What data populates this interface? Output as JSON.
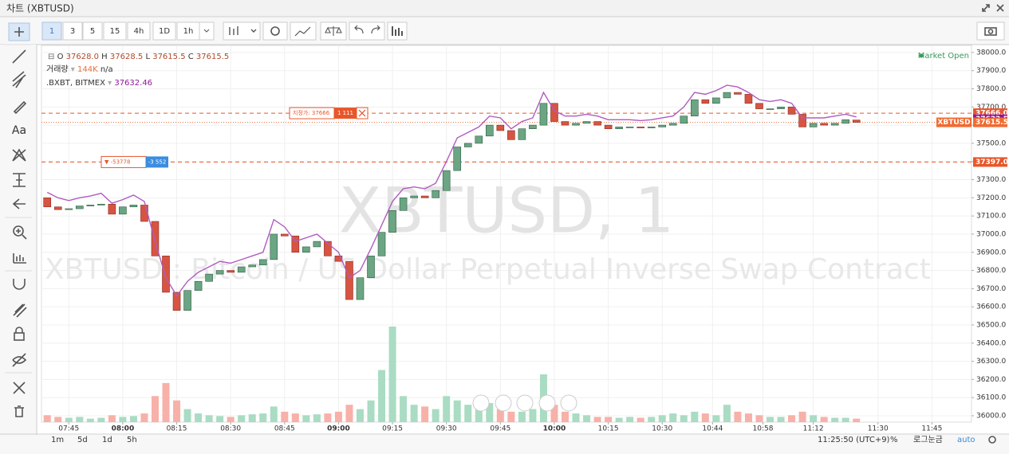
{
  "window": {
    "title": "차트 (XBTUSD)"
  },
  "toolbar": {
    "intervals": [
      "1",
      "3",
      "5",
      "15",
      "4h",
      "1D",
      "1h"
    ]
  },
  "left_tools": {
    "text_tool": "Aa"
  },
  "legend": {
    "ohlc": [
      {
        "key": "O",
        "value": "37628.0"
      },
      {
        "key": "H",
        "value": "37628.5"
      },
      {
        "key": "L",
        "value": "37615.5"
      },
      {
        "key": "C",
        "value": "37615.5"
      }
    ],
    "volume_label": "거래량",
    "volume_value": "144K",
    "volume_extra": "n/a",
    "index_name": ".BXBT, BITMEX",
    "index_value": "37632.46"
  },
  "status": "Market Open",
  "chart_data": {
    "type": "candlestick",
    "watermark": "XBTUSD, 1",
    "subtitle": "XBTUSD : Bitcoin / US Dollar Perpetual Inverse Swap Contract",
    "up_color": "#6ba583",
    "down_color": "#d75442",
    "volume_up_color": "#a9dcc3",
    "volume_down_color": "#f7b1a8",
    "grid": true,
    "x": [
      459,
      462,
      465,
      468,
      471,
      474,
      477,
      480,
      483,
      486,
      489,
      492,
      495,
      498,
      501,
      504,
      507,
      510,
      513,
      516,
      519,
      522,
      525,
      528,
      531,
      534,
      537,
      540,
      543,
      546,
      549,
      552,
      555,
      558,
      561,
      564,
      567,
      570,
      573,
      576,
      579,
      582,
      585,
      588,
      591,
      594,
      597,
      600,
      603,
      606,
      609,
      612,
      615,
      618,
      621,
      624,
      627,
      630,
      633,
      636,
      639,
      642,
      645,
      648,
      651,
      654,
      657,
      660,
      663,
      666,
      669,
      672,
      675,
      678,
      681,
      684
    ],
    "open": [
      37200,
      37150,
      37135,
      37140,
      37155,
      37160,
      37165,
      37110,
      37150,
      37160,
      37070,
      36880,
      36680,
      36580,
      36690,
      36740,
      36780,
      36800,
      36790,
      36820,
      36830,
      36860,
      37000,
      36990,
      36900,
      36930,
      36960,
      36880,
      36850,
      36640,
      36760,
      36880,
      37010,
      37130,
      37200,
      37210,
      37200,
      37240,
      37350,
      37480,
      37500,
      37540,
      37600,
      37570,
      37520,
      37580,
      37600,
      37720,
      37620,
      37600,
      37610,
      37620,
      37600,
      37580,
      37590,
      37590,
      37585,
      37590,
      37600,
      37610,
      37650,
      37740,
      37720,
      37750,
      37780,
      37770,
      37720,
      37690,
      37690,
      37700,
      37660,
      37590,
      37610,
      37600,
      37610,
      37628
    ],
    "close": [
      37150,
      37135,
      37140,
      37155,
      37160,
      37165,
      37110,
      37150,
      37160,
      37070,
      36880,
      36680,
      36580,
      36690,
      36740,
      36780,
      36800,
      36790,
      36820,
      36830,
      36860,
      37000,
      36990,
      36900,
      36930,
      36960,
      36880,
      36850,
      36640,
      36760,
      36880,
      37010,
      37130,
      37200,
      37210,
      37200,
      37240,
      37350,
      37480,
      37500,
      37540,
      37600,
      37570,
      37520,
      37580,
      37600,
      37720,
      37620,
      37600,
      37610,
      37620,
      37600,
      37580,
      37590,
      37590,
      37585,
      37590,
      37600,
      37610,
      37650,
      37740,
      37720,
      37750,
      37780,
      37770,
      37720,
      37690,
      37690,
      37700,
      37660,
      37590,
      37610,
      37600,
      37610,
      37630,
      37615.5
    ],
    "volume": [
      8,
      6,
      5,
      6,
      4,
      5,
      8,
      6,
      7,
      10,
      30,
      45,
      25,
      15,
      10,
      8,
      7,
      6,
      8,
      9,
      10,
      18,
      12,
      10,
      8,
      9,
      10,
      12,
      20,
      15,
      25,
      60,
      110,
      30,
      20,
      18,
      15,
      30,
      25,
      20,
      18,
      22,
      15,
      12,
      12,
      15,
      55,
      20,
      12,
      10,
      8,
      6,
      6,
      5,
      6,
      5,
      6,
      8,
      10,
      8,
      12,
      10,
      8,
      20,
      12,
      10,
      8,
      6,
      6,
      8,
      12,
      8,
      6,
      5,
      5,
      4
    ],
    "indicator": {
      "color": "#b05cc0",
      "values": [
        37230,
        37200,
        37185,
        37200,
        37210,
        37225,
        37170,
        37190,
        37215,
        37180,
        36960,
        36760,
        36660,
        36740,
        36790,
        36820,
        36850,
        36840,
        36860,
        36880,
        36900,
        37080,
        37040,
        36960,
        36980,
        37000,
        36950,
        36900,
        36760,
        36800,
        36920,
        37050,
        37180,
        37250,
        37260,
        37250,
        37280,
        37400,
        37530,
        37560,
        37590,
        37650,
        37640,
        37580,
        37620,
        37640,
        37780,
        37680,
        37650,
        37650,
        37660,
        37650,
        37630,
        37630,
        37630,
        37625,
        37630,
        37640,
        37650,
        37700,
        37780,
        37770,
        37790,
        37820,
        37810,
        37780,
        37740,
        37730,
        37740,
        37720,
        37640,
        37640,
        37640,
        37650,
        37660,
        37645
      ]
    },
    "price_lines": [
      {
        "value": 37666,
        "label": "37666.0",
        "color": "#e8562a",
        "style": "dashed",
        "order": {
          "label": "지정가: 37666",
          "qty": "1 111"
        }
      },
      {
        "value": 37632.5,
        "label": "37632.5",
        "color": "#8e1599"
      },
      {
        "value": 37615.5,
        "label": "37615.5",
        "name": "XBTUSD",
        "color": "#f06b32",
        "style": "dotted"
      },
      {
        "value": 37397,
        "label": "37397.0",
        "color": "#e8562a",
        "style": "dashed",
        "order": {
          "label": "▼ -53778",
          "qty": "-3 552"
        }
      }
    ],
    "xlim": [
      457.4,
      716
    ],
    "xticks": [
      {
        "value": 465,
        "label": "07:45"
      },
      {
        "value": 480,
        "label": "08:00"
      },
      {
        "value": 495,
        "label": "08:15"
      },
      {
        "value": 510,
        "label": "08:30"
      },
      {
        "value": 525,
        "label": "08:45"
      },
      {
        "value": 540,
        "label": "09:00"
      },
      {
        "value": 555,
        "label": "09:15"
      },
      {
        "value": 570,
        "label": "09:30"
      },
      {
        "value": 585,
        "label": "09:45"
      },
      {
        "value": 600,
        "label": "10:00"
      },
      {
        "value": 615,
        "label": "10:15"
      },
      {
        "value": 630,
        "label": "10:30"
      },
      {
        "value": 644,
        "label": "10:44"
      },
      {
        "value": 658,
        "label": "10:58"
      },
      {
        "value": 672,
        "label": "11:12"
      },
      {
        "value": 690,
        "label": "11:30"
      },
      {
        "value": 705,
        "label": "11:45"
      }
    ],
    "ylim": [
      35965,
      38039
    ],
    "yticks": [
      {
        "value": 36000,
        "label": "36000.0"
      },
      {
        "value": 36100,
        "label": "36100.0"
      },
      {
        "value": 36200,
        "label": "36200.0"
      },
      {
        "value": 36300,
        "label": "36300.0"
      },
      {
        "value": 36400,
        "label": "36400.0"
      },
      {
        "value": 36500,
        "label": "36500.0"
      },
      {
        "value": 36600,
        "label": "36600.0"
      },
      {
        "value": 36700,
        "label": "36700.0"
      },
      {
        "value": 36800,
        "label": "36800.0"
      },
      {
        "value": 36900,
        "label": "36900.0"
      },
      {
        "value": 37000,
        "label": "37000.0"
      },
      {
        "value": 37100,
        "label": "37100.0"
      },
      {
        "value": 37200,
        "label": "37200.0"
      },
      {
        "value": 37300,
        "label": "37300.0"
      },
      {
        "value": 37400,
        "label": "37400.0"
      },
      {
        "value": 37500,
        "label": "37500.0"
      },
      {
        "value": 37600,
        "label": "37600.0"
      },
      {
        "value": 37700,
        "label": "37700.0"
      },
      {
        "value": 37800,
        "label": "37800.0"
      },
      {
        "value": 37900,
        "label": "37900.0"
      },
      {
        "value": 38000,
        "label": "38000.0"
      }
    ]
  },
  "footer": {
    "ranges": [
      "1m",
      "5d",
      "1d",
      "5h"
    ],
    "clock": "11:25:50 (UTC+9)",
    "percent": "%",
    "log": "로그눈금",
    "auto": "auto"
  }
}
